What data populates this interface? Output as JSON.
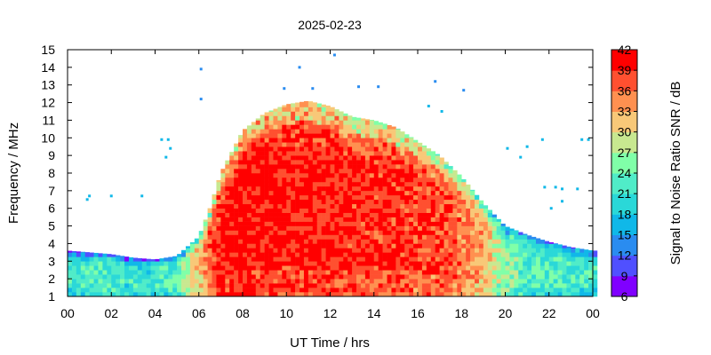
{
  "chart_data": {
    "type": "heatmap",
    "title": "2025-02-23",
    "xlabel": "UT Time / hrs",
    "ylabel": "Frequency / MHz",
    "colorbar_label": "Signal to Noise Ratio SNR / dB",
    "xlim": [
      0,
      24
    ],
    "ylim": [
      1,
      15
    ],
    "clim": [
      6,
      42
    ],
    "x_ticks": [
      "00",
      "02",
      "04",
      "06",
      "08",
      "10",
      "12",
      "14",
      "16",
      "18",
      "20",
      "22",
      "00"
    ],
    "y_ticks": [
      "1",
      "2",
      "3",
      "4",
      "5",
      "6",
      "7",
      "8",
      "9",
      "10",
      "11",
      "12",
      "13",
      "14",
      "15"
    ],
    "colorbar_ticks": [
      "6",
      "9",
      "12",
      "15",
      "18",
      "21",
      "24",
      "27",
      "30",
      "33",
      "36",
      "39",
      "42"
    ],
    "colorbar_colors": [
      "#8000ff",
      "#5050ff",
      "#2a8cf0",
      "#10b8e8",
      "#2ad8d8",
      "#50ecc8",
      "#80ffa8",
      "#c8e890",
      "#f8c878",
      "#ff9050",
      "#ff5030",
      "#ff0000"
    ],
    "grid": false,
    "band_envelope": [
      {
        "t": 0,
        "top": 3.6,
        "peak": 21
      },
      {
        "t": 1,
        "top": 3.5,
        "peak": 22
      },
      {
        "t": 2,
        "top": 3.4,
        "peak": 22
      },
      {
        "t": 3,
        "top": 3.2,
        "peak": 21
      },
      {
        "t": 4,
        "top": 3.1,
        "peak": 21
      },
      {
        "t": 5,
        "top": 3.3,
        "peak": 24
      },
      {
        "t": 6,
        "top": 4.4,
        "peak": 32
      },
      {
        "t": 6.5,
        "top": 6.0,
        "peak": 37
      },
      {
        "t": 7,
        "top": 8.0,
        "peak": 40
      },
      {
        "t": 8,
        "top": 10.4,
        "peak": 41
      },
      {
        "t": 9,
        "top": 11.4,
        "peak": 41
      },
      {
        "t": 10,
        "top": 11.9,
        "peak": 40
      },
      {
        "t": 11,
        "top": 12.1,
        "peak": 40
      },
      {
        "t": 12,
        "top": 11.8,
        "peak": 40
      },
      {
        "t": 13,
        "top": 11.2,
        "peak": 39
      },
      {
        "t": 14,
        "top": 11.0,
        "peak": 39
      },
      {
        "t": 15,
        "top": 10.6,
        "peak": 39
      },
      {
        "t": 16,
        "top": 9.8,
        "peak": 38
      },
      {
        "t": 17,
        "top": 9.0,
        "peak": 38
      },
      {
        "t": 18,
        "top": 7.8,
        "peak": 36
      },
      {
        "t": 19,
        "top": 6.3,
        "peak": 33
      },
      {
        "t": 20,
        "top": 5.0,
        "peak": 26
      },
      {
        "t": 21,
        "top": 4.5,
        "peak": 23
      },
      {
        "t": 22,
        "top": 4.1,
        "peak": 22
      },
      {
        "t": 23,
        "top": 3.8,
        "peak": 22
      },
      {
        "t": 24,
        "top": 3.6,
        "peak": 21
      }
    ],
    "scattered_points": [
      {
        "t": 6.1,
        "f": 13.9
      },
      {
        "t": 6.1,
        "f": 12.2
      },
      {
        "t": 10.6,
        "f": 14.0
      },
      {
        "t": 12.2,
        "f": 14.7
      },
      {
        "t": 9.9,
        "f": 12.8
      },
      {
        "t": 11.2,
        "f": 12.8
      },
      {
        "t": 13.3,
        "f": 12.9
      },
      {
        "t": 14.2,
        "f": 12.9
      },
      {
        "t": 16.8,
        "f": 13.2
      },
      {
        "t": 18.1,
        "f": 12.7
      },
      {
        "t": 4.3,
        "f": 9.9
      },
      {
        "t": 4.6,
        "f": 9.9
      },
      {
        "t": 4.7,
        "f": 9.4
      },
      {
        "t": 4.5,
        "f": 8.9
      },
      {
        "t": 1.0,
        "f": 6.7
      },
      {
        "t": 2.0,
        "f": 6.7
      },
      {
        "t": 0.9,
        "f": 6.5
      },
      {
        "t": 3.4,
        "f": 6.7
      },
      {
        "t": 20.1,
        "f": 9.4
      },
      {
        "t": 20.7,
        "f": 8.9
      },
      {
        "t": 21.0,
        "f": 9.5
      },
      {
        "t": 21.7,
        "f": 9.9
      },
      {
        "t": 23.5,
        "f": 9.9
      },
      {
        "t": 23.8,
        "f": 9.9
      },
      {
        "t": 21.8,
        "f": 7.2
      },
      {
        "t": 22.3,
        "f": 7.2
      },
      {
        "t": 22.6,
        "f": 7.1
      },
      {
        "t": 23.3,
        "f": 7.1
      },
      {
        "t": 22.6,
        "f": 6.4
      },
      {
        "t": 22.1,
        "f": 6.0
      },
      {
        "t": 16.5,
        "f": 11.8
      },
      {
        "t": 17.1,
        "f": 11.5
      }
    ]
  }
}
